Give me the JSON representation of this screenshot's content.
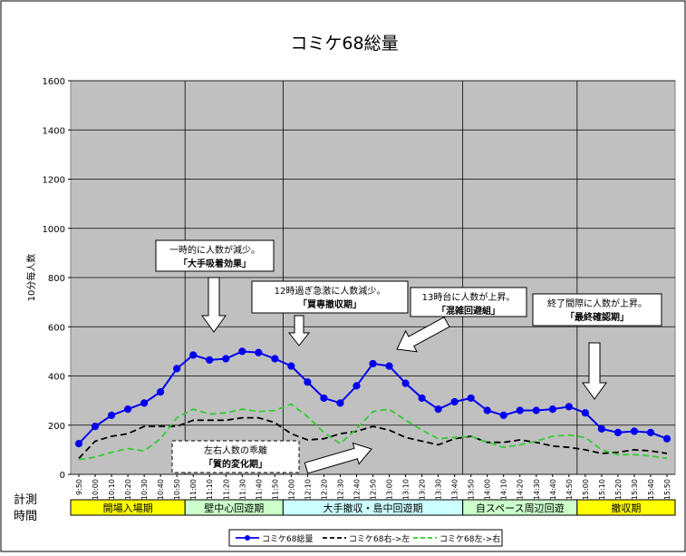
{
  "chart_data": {
    "type": "line",
    "title": "コミケ68総量",
    "ylabel": "10分毎人数",
    "ylim": [
      0,
      1600
    ],
    "yticks": [
      0,
      200,
      400,
      600,
      800,
      1000,
      1200,
      1400,
      1600
    ],
    "grid": true,
    "legend_position": "bottom",
    "x_label_lines": [
      "計測",
      "時間"
    ],
    "categories": [
      "9:50",
      "10:00",
      "10:10",
      "10:20",
      "10:30",
      "10:40",
      "10:50",
      "11:00",
      "11:10",
      "11:20",
      "11:30",
      "11:40",
      "11:50",
      "12:00",
      "12:10",
      "12:20",
      "12:30",
      "12:40",
      "12:50",
      "13:00",
      "13:10",
      "13:20",
      "13:30",
      "13:40",
      "13:50",
      "14:00",
      "14:10",
      "14:20",
      "14:30",
      "14:40",
      "14:50",
      "15:00",
      "15:10",
      "15:20",
      "15:30",
      "15:40",
      "15:50"
    ],
    "series": [
      {
        "name": "コミケ68総量",
        "color": "#0000ee",
        "style": "solid-marker",
        "values": [
          125,
          195,
          240,
          265,
          290,
          335,
          430,
          485,
          465,
          470,
          500,
          495,
          470,
          440,
          375,
          310,
          290,
          360,
          450,
          440,
          370,
          310,
          265,
          295,
          310,
          260,
          240,
          260,
          260,
          265,
          275,
          250,
          185,
          170,
          175,
          170,
          145
        ]
      },
      {
        "name": "コミケ68右->左",
        "color": "#000000",
        "style": "dashed",
        "values": [
          65,
          135,
          155,
          165,
          195,
          195,
          195,
          220,
          220,
          220,
          230,
          230,
          210,
          165,
          140,
          145,
          165,
          175,
          195,
          180,
          150,
          135,
          120,
          145,
          155,
          130,
          130,
          140,
          130,
          115,
          110,
          100,
          85,
          90,
          100,
          95,
          85
        ]
      },
      {
        "name": "コミケ68左->右",
        "color": "#33cc33",
        "style": "dashed",
        "values": [
          60,
          70,
          90,
          105,
          95,
          145,
          230,
          265,
          245,
          250,
          265,
          255,
          260,
          285,
          235,
          170,
          125,
          185,
          255,
          265,
          220,
          180,
          145,
          150,
          155,
          130,
          110,
          120,
          135,
          155,
          160,
          150,
          100,
          80,
          80,
          75,
          65
        ]
      }
    ],
    "annotations": [
      {
        "text": [
          "一時的に人数が減少。",
          "「大手吸着効果」"
        ]
      },
      {
        "text": [
          "12時過ぎ急激に人数減少。",
          "「買専撤収期」"
        ]
      },
      {
        "text": [
          "13時台に人数が上昇。",
          "「混雑回避組」"
        ]
      },
      {
        "text": [
          "終了間際に人数が上昇。",
          "「最終確認期」"
        ]
      },
      {
        "text": [
          "左右人数の乖離",
          "「質的変化期」"
        ]
      }
    ],
    "phases": [
      {
        "label": "開場入場期",
        "color": "#ffff00"
      },
      {
        "label": "壁中心回遊期",
        "color": "#ccffcc"
      },
      {
        "label": "大手撤収・島中回遊期",
        "color": "#ccffff"
      },
      {
        "label": "自スペース周辺回遊",
        "color": "#ccffcc"
      },
      {
        "label": "撤収期",
        "color": "#ffff00"
      }
    ]
  }
}
